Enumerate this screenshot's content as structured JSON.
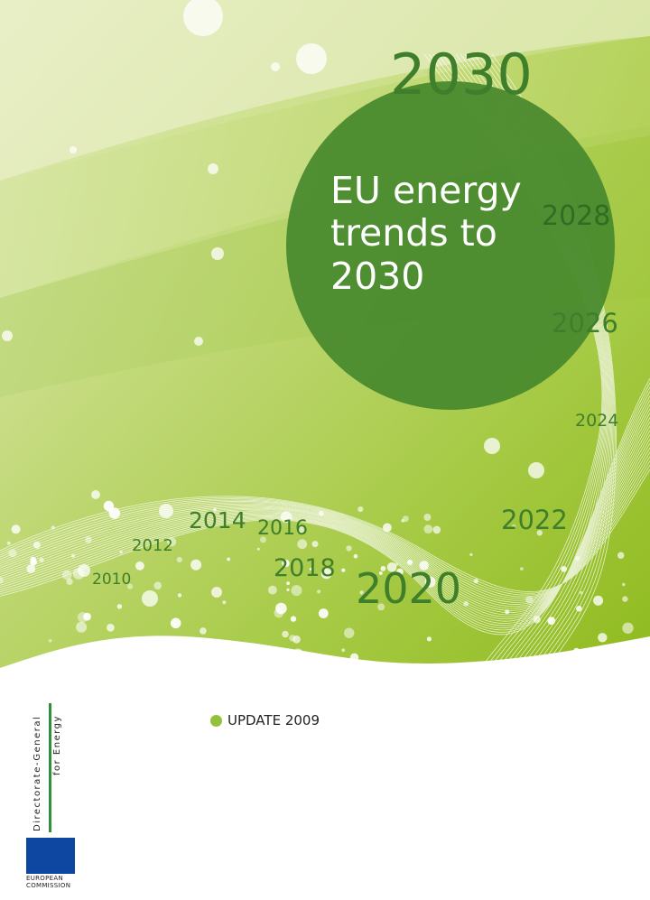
{
  "cover": {
    "title_lines": [
      "EU energy",
      "trends to",
      "2030"
    ],
    "years": [
      "2010",
      "2012",
      "2014",
      "2016",
      "2018",
      "2020",
      "2022",
      "2024",
      "2026",
      "2028",
      "2030"
    ],
    "update_label": "UPDATE 2009",
    "dg_line1": "Directorate-General",
    "dg_line2": "for Energy",
    "logo_line1": "EUROPEAN",
    "logo_line2": "COMMISSION"
  },
  "colors": {
    "accent_green": "#93c13b",
    "dark_green": "#3f7f2c",
    "circle_green": "#4a8a2e",
    "dg_bar": "#2f8f3a",
    "eu_blue": "#0e47a1",
    "eu_star": "#ffdd00"
  }
}
